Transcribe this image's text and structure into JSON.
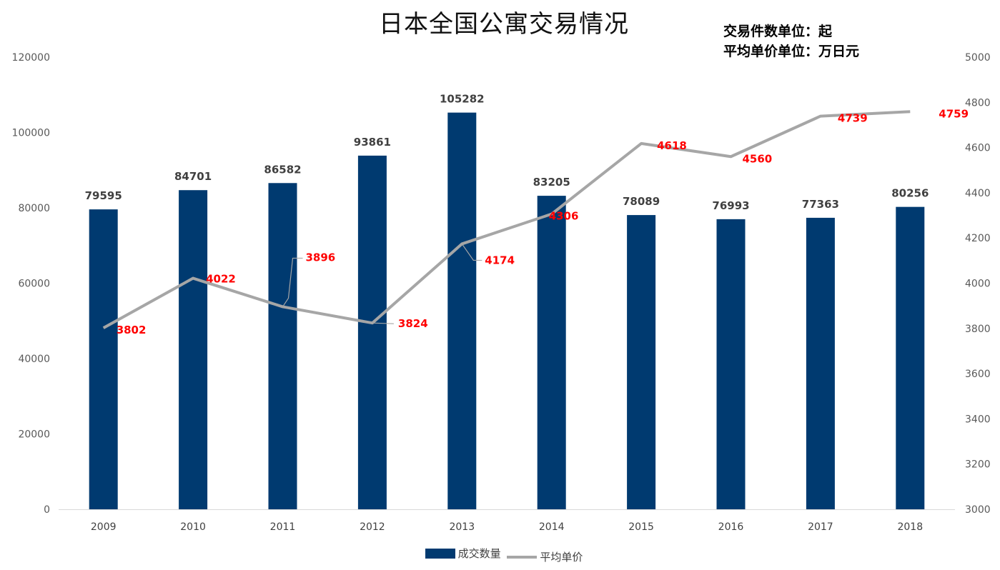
{
  "chart_data": {
    "type": "bar",
    "title": "日本全国公寓交易情况",
    "notes": [
      "交易件数单位：起",
      "平均单价单位：万日元"
    ],
    "categories": [
      "2009",
      "2010",
      "2011",
      "2012",
      "2013",
      "2014",
      "2015",
      "2016",
      "2017",
      "2018"
    ],
    "series": [
      {
        "name": "成交数量",
        "type": "bar",
        "axis": "left",
        "color": "#003a70",
        "values": [
          79595,
          84701,
          86582,
          93861,
          105282,
          83205,
          78089,
          76993,
          77363,
          80256
        ]
      },
      {
        "name": "平均单价",
        "type": "line",
        "axis": "right",
        "color": "#a6a6a6",
        "label_color": "#ff0000",
        "values": [
          3802,
          4022,
          3896,
          3824,
          4174,
          4306,
          4618,
          4560,
          4739,
          4759
        ]
      }
    ],
    "y_left": {
      "min": 0,
      "max": 120000,
      "ticks": [
        "0",
        "20000",
        "40000",
        "60000",
        "80000",
        "100000",
        "120000"
      ]
    },
    "y_right": {
      "min": 3000,
      "max": 5000,
      "ticks": [
        "3000",
        "3200",
        "3400",
        "3600",
        "3800",
        "4000",
        "4200",
        "4400",
        "4600",
        "4800",
        "5000"
      ]
    },
    "legend_position": "bottom",
    "grid": false
  }
}
